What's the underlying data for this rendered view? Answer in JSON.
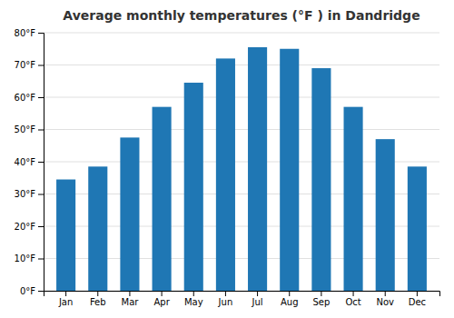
{
  "chart_data": {
    "type": "bar",
    "title": "Average monthly temperatures (°F ) in Dandridge",
    "categories": [
      "Jan",
      "Feb",
      "Mar",
      "Apr",
      "May",
      "Jun",
      "Jul",
      "Aug",
      "Sep",
      "Oct",
      "Nov",
      "Dec"
    ],
    "values": [
      34.5,
      38.5,
      47.5,
      57,
      64.5,
      72,
      75.5,
      75,
      69,
      57,
      47,
      38.5
    ],
    "ylim": [
      0,
      80
    ],
    "yticks": [
      {
        "value": 0,
        "label": "0°F"
      },
      {
        "value": 10,
        "label": "10°F"
      },
      {
        "value": 20,
        "label": "20°F"
      },
      {
        "value": 30,
        "label": "30°F"
      },
      {
        "value": 40,
        "label": "40°F"
      },
      {
        "value": 50,
        "label": "50°F"
      },
      {
        "value": 60,
        "label": "60°F"
      },
      {
        "value": 70,
        "label": "70°F"
      },
      {
        "value": 80,
        "label": "80°F"
      }
    ],
    "grid": true
  }
}
